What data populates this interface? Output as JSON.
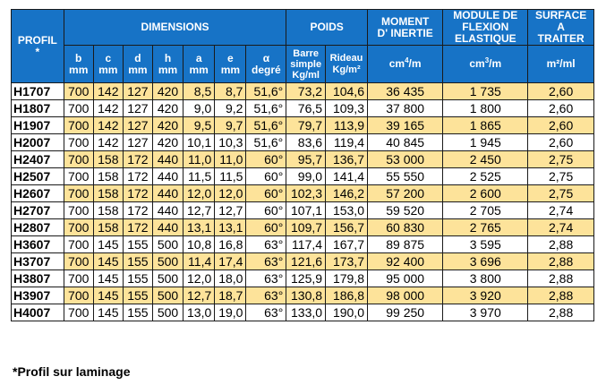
{
  "header": {
    "profil": "PROFIL",
    "profil_star": "*",
    "dimensions": "DIMENSIONS",
    "poids": "POIDS",
    "moment_line1": "MOMENT",
    "moment_line2": "D' INERTIE",
    "module_line1": "MODULE DE",
    "module_line2": "FLEXION",
    "module_line3": "ELASTIQUE",
    "surface_line1": "SURFACE",
    "surface_line2": "A",
    "surface_line3": "TRAITER",
    "sub": [
      {
        "top": "b",
        "bottom": "mm"
      },
      {
        "top": "c",
        "bottom": "mm"
      },
      {
        "top": "d",
        "bottom": "mm"
      },
      {
        "top": "h",
        "bottom": "mm"
      },
      {
        "top": "a",
        "bottom": "mm"
      },
      {
        "top": "e",
        "bottom": "mm"
      },
      {
        "top": "α",
        "bottom": "degré"
      }
    ],
    "barre_line1": "Barre",
    "barre_line2": "simple",
    "barre_line3": "Kg/ml",
    "rideau_line1": "Rideau",
    "rideau_line2": "Kg/m²",
    "moment_unit_base": "cm",
    "moment_unit_exp": "4",
    "moment_unit_tail": "/m",
    "module_unit_base": "cm",
    "module_unit_exp": "3",
    "module_unit_tail": "/m",
    "surface_unit": "m²/ml"
  },
  "rows": [
    {
      "profil": "H1707",
      "b": "700",
      "c": "142",
      "d": "127",
      "h": "420",
      "a": "8,5",
      "e": "8,7",
      "alpha": "51,6°",
      "barre": "73,2",
      "rideau": "104,6",
      "moment": "36 435",
      "module": "1 735",
      "surface": "2,60"
    },
    {
      "profil": "H1807",
      "b": "700",
      "c": "142",
      "d": "127",
      "h": "420",
      "a": "9,0",
      "e": "9,2",
      "alpha": "51,6°",
      "barre": "76,5",
      "rideau": "109,3",
      "moment": "37 800",
      "module": "1 800",
      "surface": "2,60"
    },
    {
      "profil": "H1907",
      "b": "700",
      "c": "142",
      "d": "127",
      "h": "420",
      "a": "9,5",
      "e": "9,7",
      "alpha": "51,6°",
      "barre": "79,7",
      "rideau": "113,9",
      "moment": "39 165",
      "module": "1 865",
      "surface": "2,60"
    },
    {
      "profil": "H2007",
      "b": "700",
      "c": "142",
      "d": "127",
      "h": "420",
      "a": "10,1",
      "e": "10,3",
      "alpha": "51,6°",
      "barre": "83,6",
      "rideau": "119,4",
      "moment": "40 845",
      "module": "1 945",
      "surface": "2,60"
    },
    {
      "profil": "H2407",
      "b": "700",
      "c": "158",
      "d": "172",
      "h": "440",
      "a": "11,0",
      "e": "11,0",
      "alpha": "60°",
      "barre": "95,7",
      "rideau": "136,7",
      "moment": "53 000",
      "module": "2 450",
      "surface": "2,75"
    },
    {
      "profil": "H2507",
      "b": "700",
      "c": "158",
      "d": "172",
      "h": "440",
      "a": "11,5",
      "e": "11,5",
      "alpha": "60°",
      "barre": "99,0",
      "rideau": "141,4",
      "moment": "55 550",
      "module": "2 525",
      "surface": "2,75"
    },
    {
      "profil": "H2607",
      "b": "700",
      "c": "158",
      "d": "172",
      "h": "440",
      "a": "12,0",
      "e": "12,0",
      "alpha": "60°",
      "barre": "102,3",
      "rideau": "146,2",
      "moment": "57 200",
      "module": "2 600",
      "surface": "2,75"
    },
    {
      "profil": "H2707",
      "b": "700",
      "c": "158",
      "d": "172",
      "h": "440",
      "a": "12,7",
      "e": "12,7",
      "alpha": "60°",
      "barre": "107,1",
      "rideau": "153,0",
      "moment": "59 520",
      "module": "2 705",
      "surface": "2,74"
    },
    {
      "profil": "H2807",
      "b": "700",
      "c": "158",
      "d": "172",
      "h": "440",
      "a": "13,1",
      "e": "13,1",
      "alpha": "60°",
      "barre": "109,7",
      "rideau": "156,7",
      "moment": "60 830",
      "module": "2 765",
      "surface": "2,74"
    },
    {
      "profil": "H3607",
      "b": "700",
      "c": "145",
      "d": "155",
      "h": "500",
      "a": "10,8",
      "e": "16,8",
      "alpha": "63°",
      "barre": "117,4",
      "rideau": "167,7",
      "moment": "89 875",
      "module": "3 595",
      "surface": "2,88"
    },
    {
      "profil": "H3707",
      "b": "700",
      "c": "145",
      "d": "155",
      "h": "500",
      "a": "11,4",
      "e": "17,4",
      "alpha": "63°",
      "barre": "121,6",
      "rideau": "173,7",
      "moment": "92 400",
      "module": "3 696",
      "surface": "2,88"
    },
    {
      "profil": "H3807",
      "b": "700",
      "c": "145",
      "d": "155",
      "h": "500",
      "a": "12,0",
      "e": "18,0",
      "alpha": "63°",
      "barre": "125,9",
      "rideau": "179,8",
      "moment": "95 000",
      "module": "3 800",
      "surface": "2,88"
    },
    {
      "profil": "H3907",
      "b": "700",
      "c": "145",
      "d": "155",
      "h": "500",
      "a": "12,7",
      "e": "18,7",
      "alpha": "63°",
      "barre": "130,8",
      "rideau": "186,8",
      "moment": "98 000",
      "module": "3 920",
      "surface": "2,88"
    },
    {
      "profil": "H4007",
      "b": "700",
      "c": "145",
      "d": "155",
      "h": "500",
      "a": "13,0",
      "e": "19,0",
      "alpha": "63°",
      "barre": "133,0",
      "rideau": "190,0",
      "moment": "99 250",
      "module": "3 970",
      "surface": "2,88"
    }
  ],
  "footnote": "*Profil sur laminage",
  "colors": {
    "header_bg": "#1773c6",
    "row_highlight": "#fde39a",
    "row_plain": "#ffffff"
  }
}
